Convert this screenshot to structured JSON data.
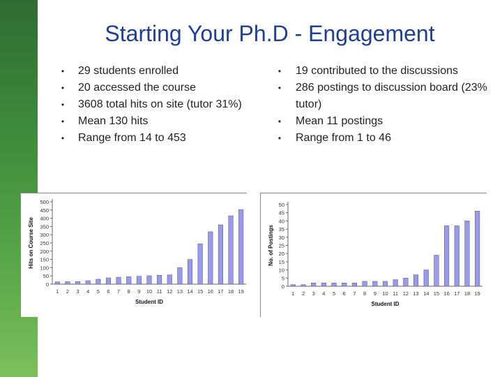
{
  "slide": {
    "title": "Starting Your Ph.D - Engagement",
    "left_bullets": [
      "29 students enrolled",
      "20 accessed the course",
      "3608 total hits on site (tutor 31%)",
      "Mean 130 hits",
      "Range from 14 to 453"
    ],
    "right_bullets": [
      "19 contributed to the discussions",
      "286 postings to discussion board (23% tutor)",
      "Mean 11 postings",
      "Range from 1 to 46"
    ],
    "bullet_glyph": "•",
    "bar_color": "#9999ee",
    "sidebar_color": "#3f8a3c",
    "title_color": "#1f3f8f"
  },
  "chart_data": [
    {
      "type": "bar",
      "xlabel": "Student ID",
      "ylabel": "Hits on Course Site",
      "ylim": [
        0,
        500
      ],
      "yticks": [
        0,
        50,
        100,
        150,
        200,
        250,
        300,
        350,
        400,
        450,
        500
      ],
      "categories": [
        "1",
        "2",
        "3",
        "4",
        "5",
        "6",
        "7",
        "8",
        "9",
        "10",
        "11",
        "12",
        "13",
        "14",
        "15",
        "16",
        "17",
        "18",
        "19"
      ],
      "values": [
        14,
        15,
        16,
        21,
        30,
        38,
        42,
        45,
        48,
        51,
        54,
        56,
        100,
        150,
        245,
        318,
        360,
        415,
        453
      ]
    },
    {
      "type": "bar",
      "xlabel": "Student ID",
      "ylabel": "No. of Postings",
      "ylim": [
        0,
        50
      ],
      "yticks": [
        0,
        5,
        10,
        15,
        20,
        25,
        30,
        35,
        40,
        45,
        50
      ],
      "categories": [
        "1",
        "2",
        "3",
        "4",
        "5",
        "6",
        "7",
        "8",
        "9",
        "10",
        "11",
        "12",
        "13",
        "14",
        "15",
        "16",
        "17",
        "18",
        "19"
      ],
      "values": [
        1,
        1,
        2,
        2,
        2,
        2,
        2,
        3,
        3,
        3,
        4,
        5,
        7,
        10,
        19,
        37,
        37,
        40,
        46
      ]
    }
  ]
}
